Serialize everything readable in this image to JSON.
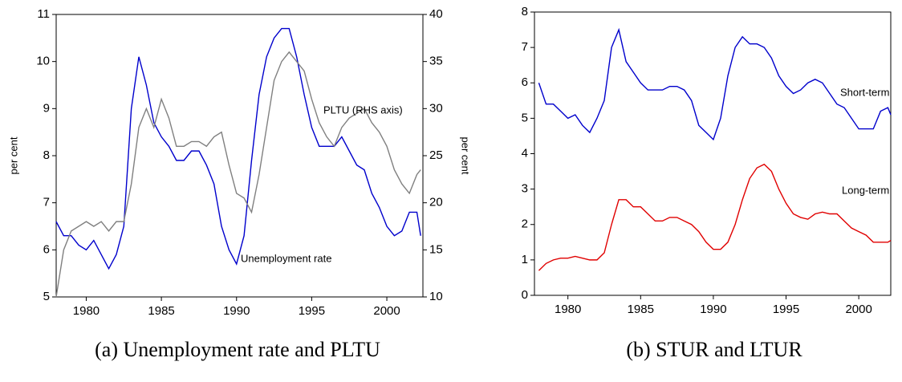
{
  "chart_data": [
    {
      "type": "line",
      "caption": "(a) Unemployment rate and PLTU",
      "ylabel": "per cent",
      "y2label": "per cent",
      "xlim": [
        1978,
        2002.4
      ],
      "xticks": [
        1980,
        1985,
        1990,
        1995,
        2000
      ],
      "ylim": [
        5,
        11
      ],
      "yticks": [
        5,
        6,
        7,
        8,
        9,
        10,
        11
      ],
      "y2lim": [
        10,
        40
      ],
      "y2ticks": [
        10,
        15,
        20,
        25,
        30,
        35,
        40
      ],
      "x": [
        1978,
        1978.5,
        1979,
        1979.5,
        1980,
        1980.5,
        1981,
        1981.5,
        1982,
        1982.5,
        1983,
        1983.5,
        1984,
        1984.5,
        1985,
        1985.5,
        1986,
        1986.5,
        1987,
        1987.5,
        1988,
        1988.5,
        1989,
        1989.5,
        1990,
        1990.5,
        1991,
        1991.5,
        1992,
        1992.5,
        1993,
        1993.5,
        1994,
        1994.5,
        1995,
        1995.5,
        1996,
        1996.5,
        1997,
        1997.5,
        1998,
        1998.5,
        1999,
        1999.5,
        2000,
        2000.5,
        2001,
        2001.5,
        2002,
        2002.25
      ],
      "series": [
        {
          "name": "Unemployment rate",
          "color": "#0000cc",
          "values": [
            6.6,
            6.3,
            6.3,
            6.1,
            6.0,
            6.2,
            5.9,
            5.6,
            5.9,
            6.5,
            9.0,
            10.1,
            9.5,
            8.7,
            8.4,
            8.2,
            7.9,
            7.9,
            8.1,
            8.1,
            7.8,
            7.4,
            6.5,
            6.0,
            5.7,
            6.3,
            7.9,
            9.3,
            10.1,
            10.5,
            10.7,
            10.7,
            10.1,
            9.3,
            8.6,
            8.2,
            8.2,
            8.2,
            8.4,
            8.1,
            7.8,
            7.7,
            7.2,
            6.9,
            6.5,
            6.3,
            6.4,
            6.8,
            6.8,
            6.3
          ]
        },
        {
          "name": "PLTU (RHS axis)",
          "color": "#808080",
          "axis": "y2",
          "values": [
            10,
            15,
            17,
            17.5,
            18,
            17.5,
            18,
            17,
            18,
            18,
            22,
            28,
            30,
            28,
            31,
            29,
            26,
            26,
            26.5,
            26.5,
            26,
            27,
            27.5,
            24,
            21,
            20.5,
            19,
            23,
            28,
            33,
            35,
            36,
            35,
            34,
            31,
            28.5,
            27,
            26,
            28,
            29,
            29.5,
            30,
            28.5,
            27.5,
            26,
            23.5,
            22,
            21,
            23,
            23.5
          ]
        }
      ]
    },
    {
      "type": "line",
      "caption": "(b) STUR and LTUR",
      "xlim": [
        1977.7,
        2002.2
      ],
      "xticks": [
        1980,
        1985,
        1990,
        1995,
        2000
      ],
      "ylim": [
        0,
        8
      ],
      "yticks": [
        0,
        1,
        2,
        3,
        4,
        5,
        6,
        7,
        8
      ],
      "x": [
        1978,
        1978.5,
        1979,
        1979.5,
        1980,
        1980.5,
        1981,
        1981.5,
        1982,
        1982.5,
        1983,
        1983.5,
        1984,
        1984.5,
        1985,
        1985.5,
        1986,
        1986.5,
        1987,
        1987.5,
        1988,
        1988.5,
        1989,
        1989.5,
        1990,
        1990.5,
        1991,
        1991.5,
        1992,
        1992.5,
        1993,
        1993.5,
        1994,
        1994.5,
        1995,
        1995.5,
        1996,
        1996.5,
        1997,
        1997.5,
        1998,
        1998.5,
        1999,
        1999.5,
        2000,
        2000.5,
        2001,
        2001.5,
        2002,
        2002.2
      ],
      "series": [
        {
          "name": "Short-term",
          "color": "#0000cc",
          "values": [
            6.0,
            5.4,
            5.4,
            5.2,
            5.0,
            5.1,
            4.8,
            4.6,
            5.0,
            5.5,
            7.0,
            7.5,
            6.6,
            6.3,
            6.0,
            5.8,
            5.8,
            5.8,
            5.9,
            5.9,
            5.8,
            5.5,
            4.8,
            4.6,
            4.4,
            5.0,
            6.2,
            7.0,
            7.3,
            7.1,
            7.1,
            7.0,
            6.7,
            6.2,
            5.9,
            5.7,
            5.8,
            6.0,
            6.1,
            6.0,
            5.7,
            5.4,
            5.3,
            5.0,
            4.7,
            4.7,
            4.7,
            5.2,
            5.3,
            5.1
          ]
        },
        {
          "name": "Long-term",
          "color": "#e00000",
          "values": [
            0.7,
            0.9,
            1.0,
            1.05,
            1.05,
            1.1,
            1.05,
            1.0,
            1.0,
            1.2,
            2.0,
            2.7,
            2.7,
            2.5,
            2.5,
            2.3,
            2.1,
            2.1,
            2.2,
            2.2,
            2.1,
            2.0,
            1.8,
            1.5,
            1.3,
            1.3,
            1.5,
            2.0,
            2.7,
            3.3,
            3.6,
            3.7,
            3.5,
            3.0,
            2.6,
            2.3,
            2.2,
            2.15,
            2.3,
            2.35,
            2.3,
            2.3,
            2.1,
            1.9,
            1.8,
            1.7,
            1.5,
            1.5,
            1.5,
            1.55
          ]
        }
      ]
    }
  ]
}
